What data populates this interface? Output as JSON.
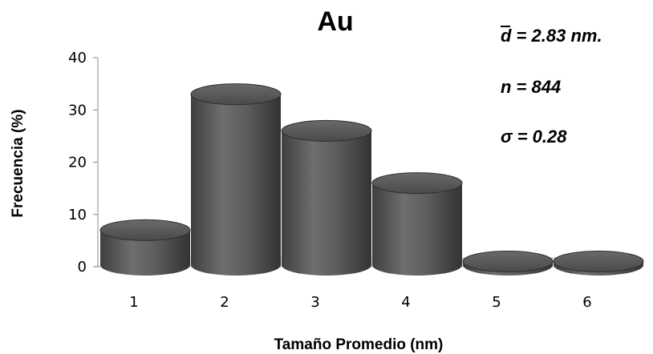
{
  "chart_data": {
    "type": "bar",
    "title": "Au",
    "xlabel": "Tamaño Promedio (nm)",
    "ylabel": "Frecuencia  (%)",
    "categories": [
      "1",
      "2",
      "3",
      "4",
      "5",
      "6"
    ],
    "values": [
      7,
      33,
      26,
      16,
      1,
      1
    ],
    "ylim": [
      0,
      40
    ],
    "yticks": [
      "0",
      "10",
      "20",
      "30",
      "40"
    ],
    "grid": false,
    "bar_color": "#5a5a5a",
    "annotations": {
      "mean": "d = 2.83 nm.",
      "n": "n  = 844",
      "sigma": "σ = 0.28"
    }
  }
}
